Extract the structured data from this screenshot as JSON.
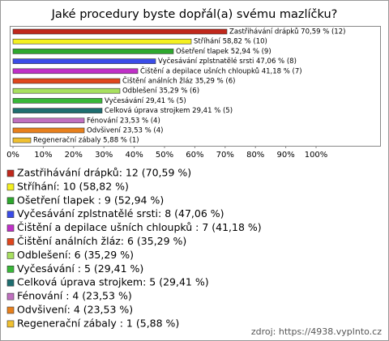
{
  "chart_data": {
    "type": "bar",
    "orientation": "horizontal",
    "title": "Jaké procedury byste dopřál(a) svému mazlíčku?",
    "categories": [
      "Zastřihávání drápků: 12 (70,59 %)",
      "Stříhání: 10 (58,82 %)",
      "Ošetření tlapek : 9 (52,94 %)",
      "Vyčesávání zplstnatělé srsti: 8 (47,06 %)",
      "Čištění a depilace ušních chloupků : 7 (41,18 %)",
      "Čištění análních žláz: 6 (35,29 %)",
      "Odblešení: 6 (35,29 %)",
      "Vyčesávání : 5 (29,41 %)",
      "Celková úprava strojkem: 5 (29,41 %)",
      "Fénování : 4 (23,53 %)",
      "Odvšivení: 4 (23,53 %)",
      "Regenerační zábaly : 1 (5,88 %)"
    ],
    "values": [
      70.59,
      58.82,
      52.94,
      47.06,
      41.18,
      35.29,
      35.29,
      29.41,
      29.41,
      23.53,
      23.53,
      5.88
    ],
    "value_labels": [
      "Zastřihávání drápků 70,59 % (12)",
      "Stříhání  58,82 % (10)",
      "Ošetření tlapek  52,94 % (9)",
      "Vyčesávání zplstnatělé srsti 47,06 % (8)",
      "Čištění a depilace ušních chloupků  41,18 % (7)",
      "Čištění análních žláz 35,29 % (6)",
      "Odblešení  35,29 % (6)",
      "Vyčesávání  29,41 % (5)",
      "Celková úprava strojkem 29,41 % (5)",
      "Fénování  23,53 % (4)",
      "Odvšivení 23,53 % (4)",
      "Regenerační zábaly  5,88 % (1)"
    ],
    "colors": [
      "#c0281c",
      "#f4f020",
      "#2ea82e",
      "#3a4ce8",
      "#c030c8",
      "#e0461c",
      "#a8e060",
      "#38b838",
      "#1e6e70",
      "#c070c0",
      "#e8801c",
      "#f0c030"
    ],
    "xlim": [
      0,
      100
    ],
    "xticks": [
      {
        "value": 0,
        "label": "0%"
      },
      {
        "value": 10,
        "label": "10%"
      },
      {
        "value": 20,
        "label": "20%"
      },
      {
        "value": 30,
        "label": "30%"
      },
      {
        "value": 40,
        "label": "40%"
      },
      {
        "value": 50,
        "label": "50%"
      },
      {
        "value": 60,
        "label": "60%"
      },
      {
        "value": 70,
        "label": "70%"
      },
      {
        "value": 80,
        "label": "80%"
      },
      {
        "value": 90,
        "label": "90%"
      },
      {
        "value": 100,
        "label": "100%"
      }
    ],
    "source": "zdroj: https://4938.vyplnto.cz"
  }
}
